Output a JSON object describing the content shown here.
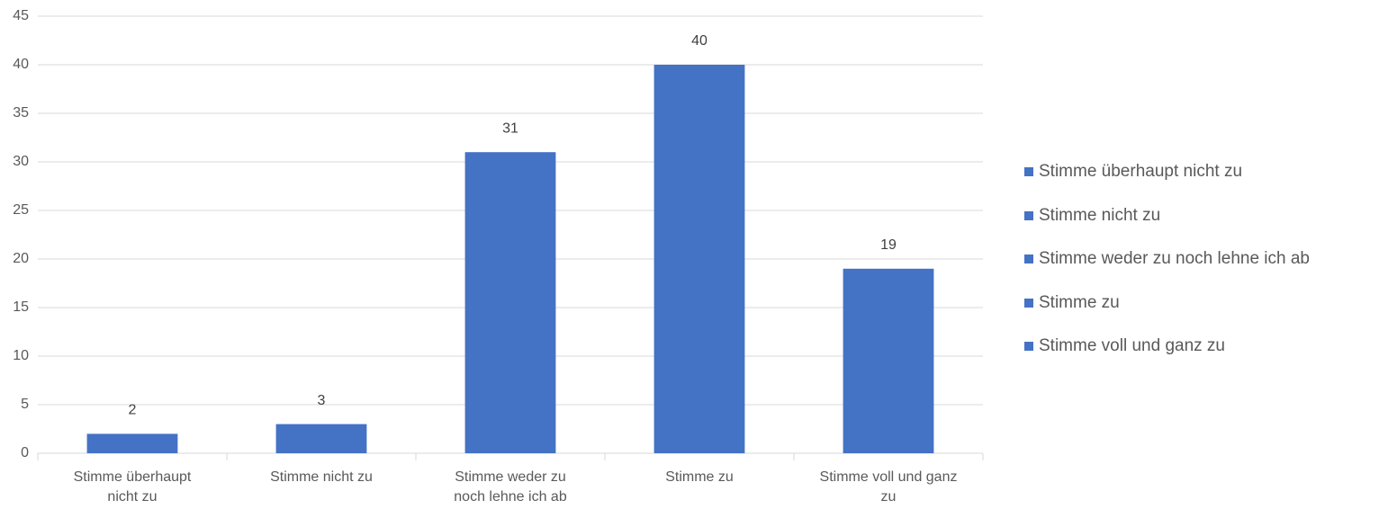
{
  "chart_data": {
    "type": "bar",
    "categories": [
      "Stimme überhaupt nicht zu",
      "Stimme nicht zu",
      "Stimme weder zu noch lehne ich ab",
      "Stimme zu",
      "Stimme voll und ganz zu"
    ],
    "values": [
      2,
      3,
      31,
      40,
      19
    ],
    "color": "#4472c4",
    "ylim": [
      0,
      45
    ],
    "yticks": [
      0,
      5,
      10,
      15,
      20,
      25,
      30,
      35,
      40,
      45
    ],
    "grid": true,
    "legend": "right"
  }
}
